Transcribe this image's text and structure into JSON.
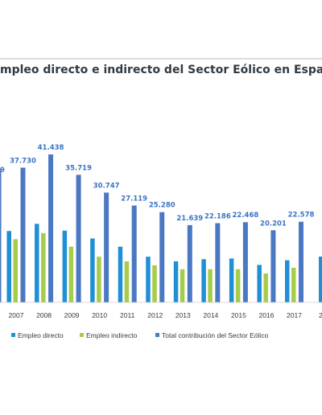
{
  "chart_data": {
    "type": "bar",
    "title": "mpleo directo e indirecto del Sector Eólico en España",
    "categories": [
      "2007",
      "2008",
      "2009",
      "2010",
      "2011",
      "2012",
      "2013",
      "2014",
      "2015",
      "2016",
      "2017"
    ],
    "series": [
      {
        "name": "Empleo directo",
        "color": "#1f8fd6",
        "values": [
          20000,
          22000,
          20100,
          17900,
          15600,
          12800,
          11500,
          12100,
          12300,
          10500,
          11800
        ]
      },
      {
        "name": "Empleo indirecto",
        "color": "#a6cc4a",
        "values": [
          17700,
          19400,
          15600,
          12800,
          11500,
          10400,
          9300,
          9300,
          9300,
          8100,
          9700
        ]
      },
      {
        "name": "Total contribución del Sector Eólico",
        "color": "#4a78c2",
        "values": [
          37730,
          41438,
          35719,
          30747,
          27119,
          25280,
          21639,
          22186,
          22468,
          20201,
          22578
        ]
      }
    ],
    "data_labels": [
      "37.730",
      "41.438",
      "35.719",
      "30.747",
      "27.119",
      "25.280",
      "21.639",
      "22.186",
      "22.468",
      "20.201",
      "22.578"
    ],
    "partial_labels": {
      "left_label": "9",
      "right_axis_label": "2"
    },
    "legend_position": "bottom",
    "grid": false
  }
}
